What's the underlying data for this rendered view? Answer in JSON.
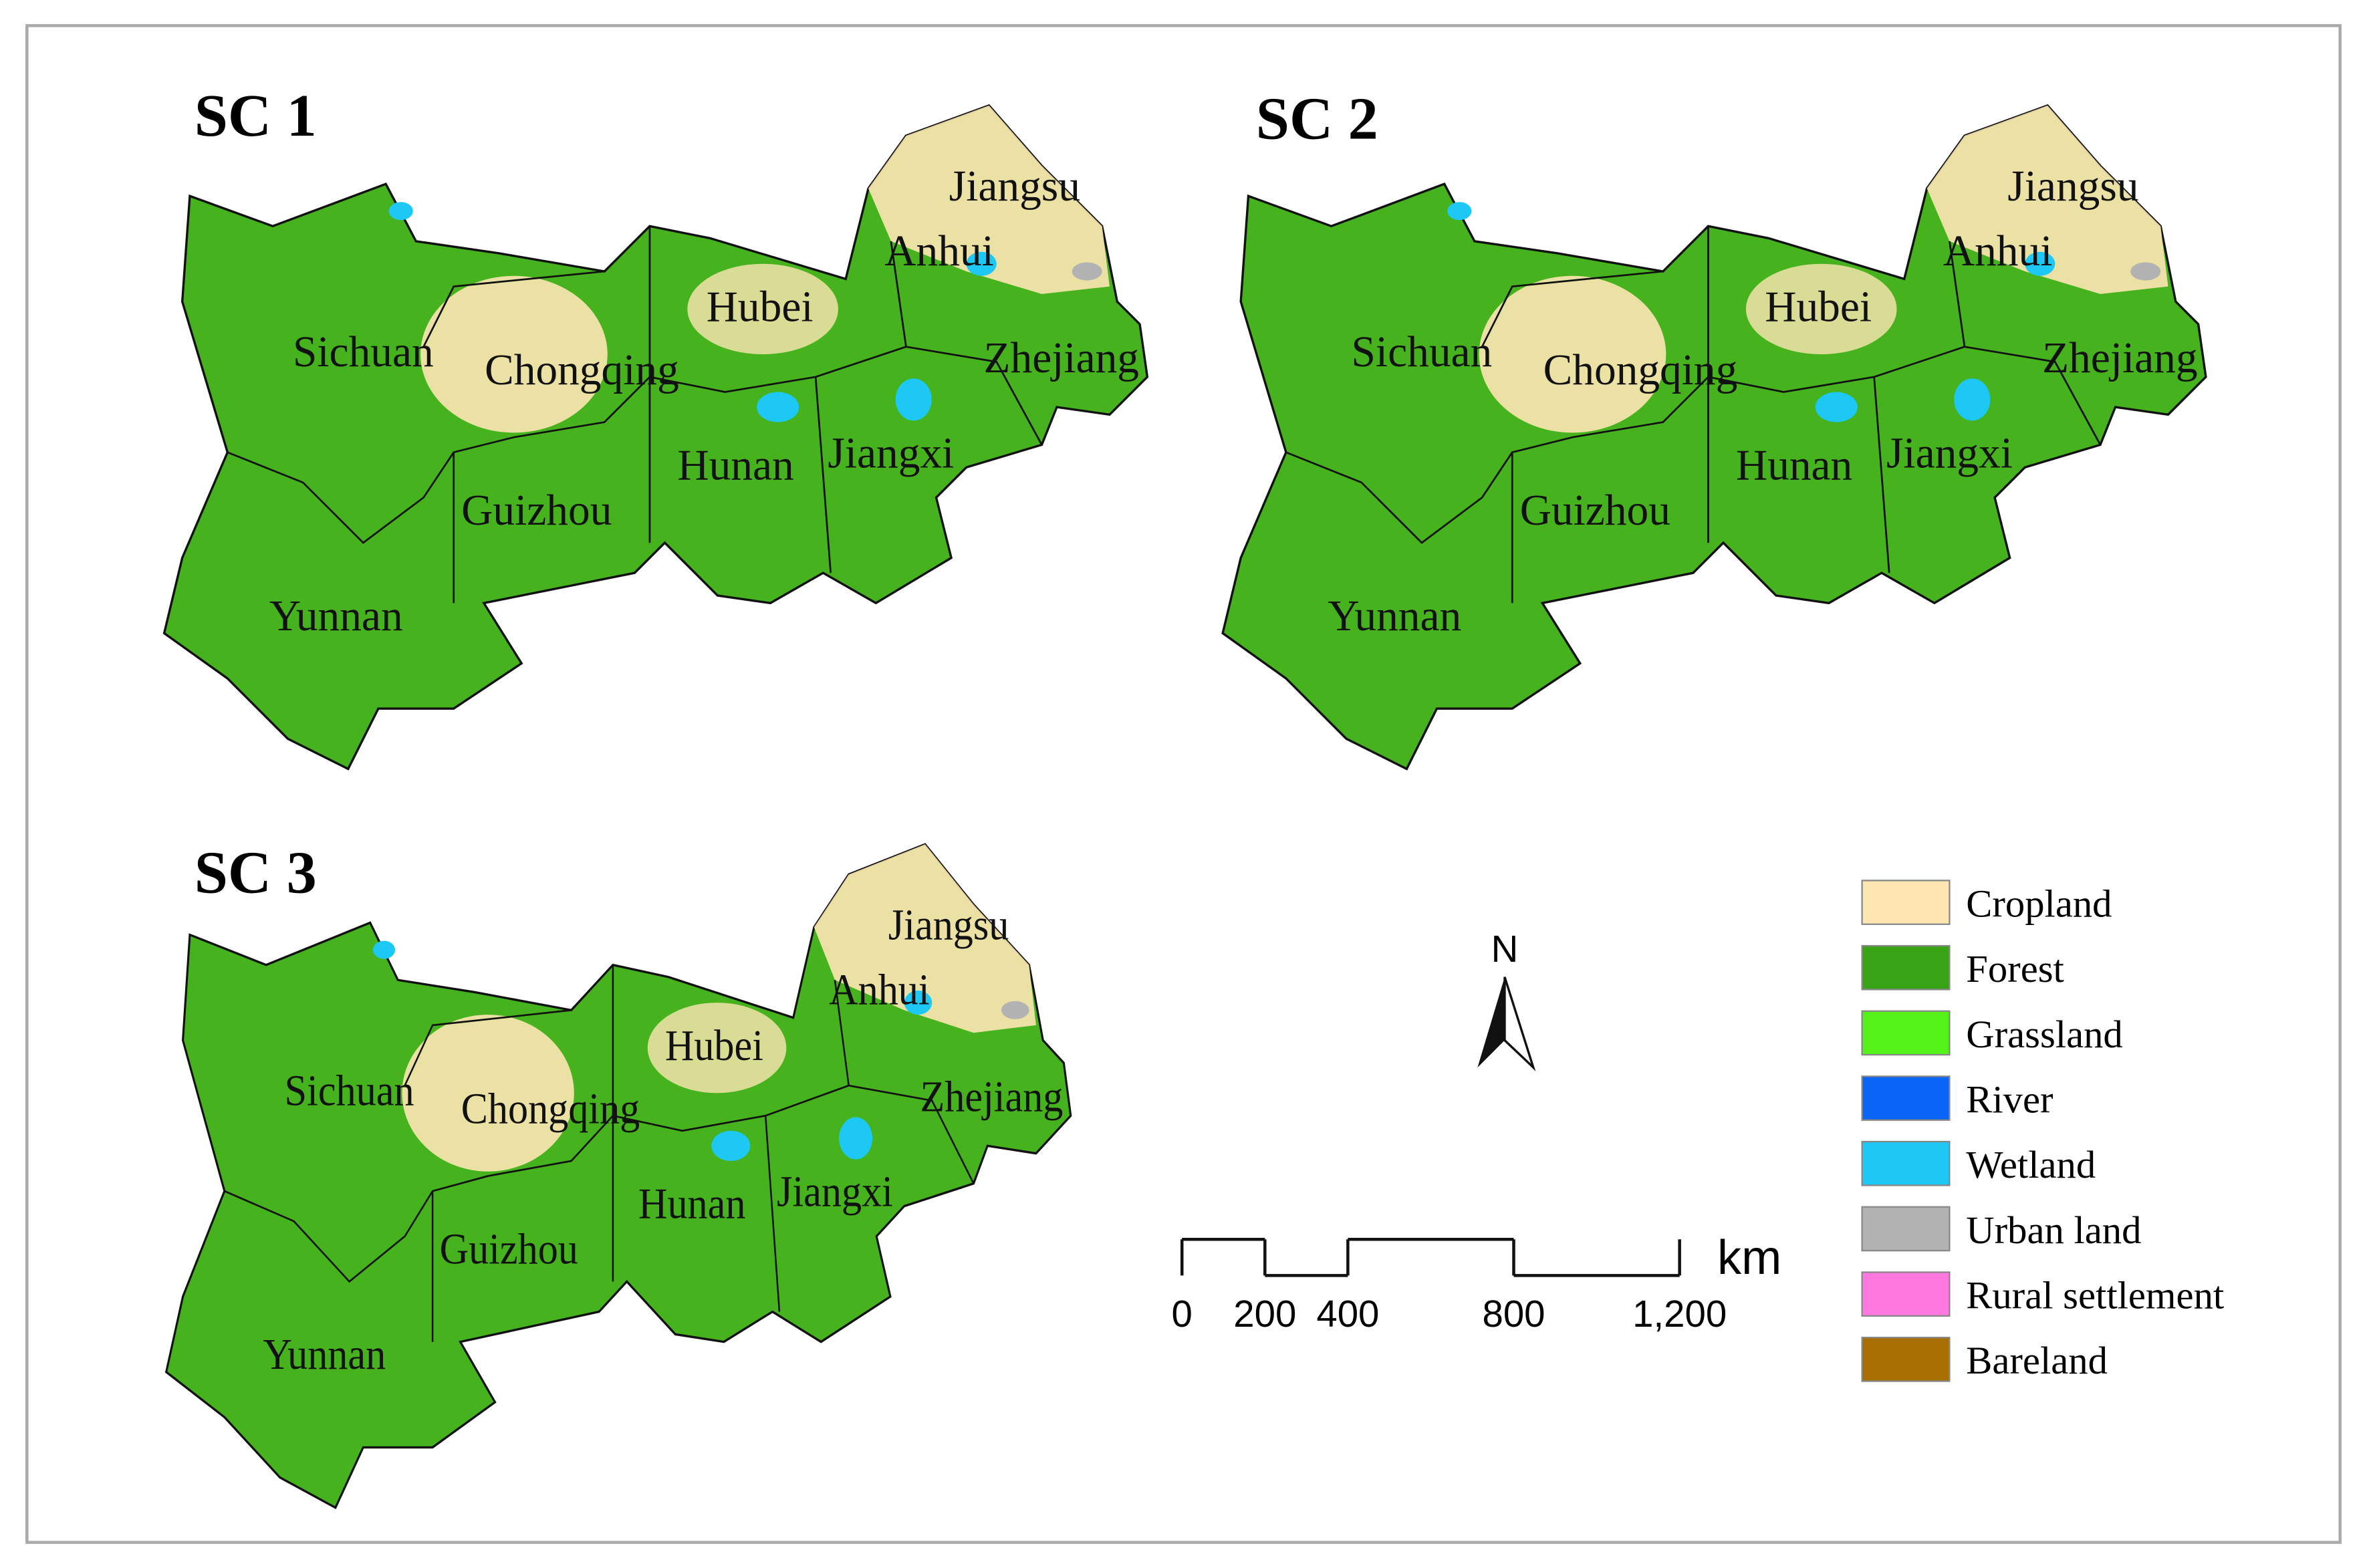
{
  "panels": [
    {
      "title": "SC 1",
      "labels": [
        "Jiangsu",
        "Anhui",
        "Hubei",
        "Sichuan",
        "Chongqing",
        "Zhejiang",
        "Hunan",
        "Jiangxi",
        "Guizhou",
        "Yunnan"
      ]
    },
    {
      "title": "SC 2",
      "labels": [
        "Jiangsu",
        "Anhui",
        "Hubei",
        "Sichuan",
        "Chongqing",
        "Zhejiang",
        "Hunan",
        "Jiangxi",
        "Guizhou",
        "Yunnan"
      ]
    },
    {
      "title": "SC 3",
      "labels": [
        "Jiangsu",
        "Anhui",
        "Hubei",
        "Sichuan",
        "Chongqing",
        "Zhejiang",
        "Hunan",
        "Jiangxi",
        "Guizhou",
        "Yunnan"
      ]
    }
  ],
  "legend": [
    {
      "label": "Cropland",
      "color": "#fde6b2"
    },
    {
      "label": "Forest",
      "color": "#38a314"
    },
    {
      "label": "Grassland",
      "color": "#55f21a"
    },
    {
      "label": "River",
      "color": "#0a64f5"
    },
    {
      "label": "Wetland",
      "color": "#1ec8f5"
    },
    {
      "label": "Urban land",
      "color": "#b2b2b2"
    },
    {
      "label": "Rural settlement",
      "color": "#ff78e0"
    },
    {
      "label": "Bareland",
      "color": "#a86f00"
    }
  ],
  "north_arrow": "N",
  "scale_bar": {
    "unit": "km",
    "ticks": [
      0,
      200,
      400,
      800,
      {
        "value": 1200,
        "label": "1,200"
      }
    ]
  }
}
